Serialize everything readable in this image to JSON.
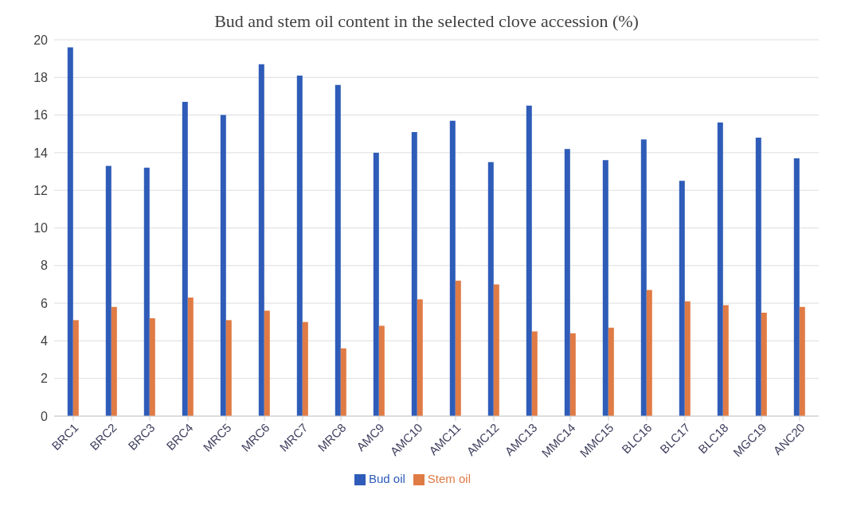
{
  "chart_data": {
    "type": "bar",
    "title": "Bud and stem oil content in the selected clove accession (%)",
    "categories": [
      "BRC1",
      "BRC2",
      "BRC3",
      "BRC4",
      "MRC5",
      "MRC6",
      "MRC7",
      "MRC8",
      "AMC9",
      "AMC10",
      "AMC11",
      "AMC12",
      "AMC13",
      "MMC14",
      "MMC15",
      "BLC16",
      "BLC17",
      "BLC18",
      "MGC19",
      "ANC20"
    ],
    "series": [
      {
        "name": "Bud oil",
        "color": "#2e5cb8",
        "values": [
          19.6,
          13.3,
          13.2,
          16.7,
          16.0,
          18.7,
          18.1,
          17.6,
          14.0,
          15.1,
          15.7,
          13.5,
          16.5,
          14.2,
          13.6,
          14.7,
          12.5,
          15.6,
          14.8,
          13.7
        ]
      },
      {
        "name": "Stem oil",
        "color": "#e07b45",
        "values": [
          5.1,
          5.8,
          5.2,
          6.3,
          5.1,
          5.6,
          5.0,
          3.6,
          4.8,
          6.2,
          7.2,
          7.0,
          4.5,
          4.4,
          4.7,
          6.7,
          6.1,
          5.9,
          5.5,
          5.8
        ]
      }
    ],
    "ylim": [
      0,
      20
    ],
    "yticks": [
      0,
      2,
      4,
      6,
      8,
      10,
      12,
      14,
      16,
      18,
      20
    ],
    "grid": "y",
    "legend": "bottom"
  }
}
